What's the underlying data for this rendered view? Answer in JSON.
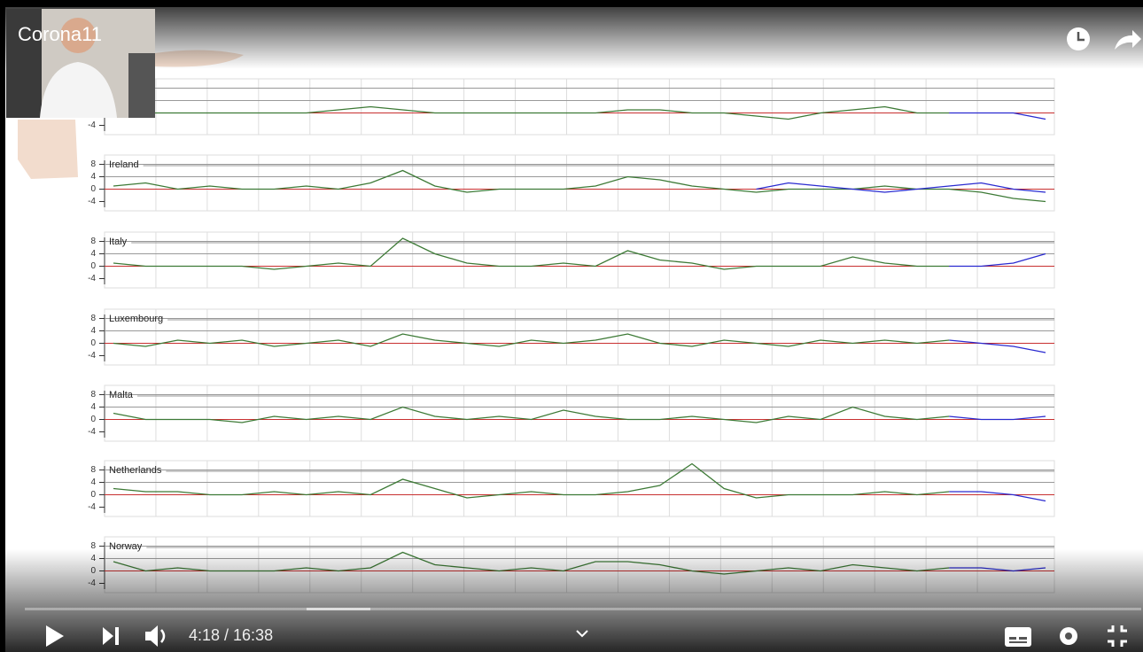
{
  "player": {
    "title": "Corona11",
    "time": "4:18 / 16:38"
  },
  "chart_data": [
    {
      "type": "line",
      "name": null,
      "ylim": [
        -7,
        11
      ],
      "yticks": [
        8,
        4,
        0,
        -4
      ],
      "series": [
        {
          "color": "#3d7a36",
          "values": [
            0,
            0,
            0,
            0,
            0,
            0,
            0,
            1,
            2,
            1,
            0,
            0,
            0,
            0,
            0,
            0,
            1,
            1,
            0,
            0,
            -1,
            -2,
            0,
            1,
            2,
            0,
            0,
            null,
            null,
            null
          ]
        },
        {
          "color": "#2a2ad0",
          "values": [
            null,
            null,
            null,
            null,
            null,
            null,
            null,
            null,
            null,
            null,
            null,
            null,
            null,
            null,
            null,
            null,
            null,
            null,
            null,
            null,
            null,
            null,
            null,
            null,
            null,
            null,
            0,
            0,
            0,
            -2
          ]
        }
      ]
    },
    {
      "type": "line",
      "name": "Ireland",
      "ylim": [
        -7,
        11
      ],
      "yticks": [
        8,
        4,
        0,
        -4
      ],
      "series": [
        {
          "color": "#3d7a36",
          "values": [
            1,
            2,
            0,
            1,
            0,
            0,
            1,
            0,
            2,
            6,
            1,
            -1,
            0,
            0,
            0,
            1,
            4,
            3,
            1,
            0,
            -1,
            0,
            0,
            0,
            1,
            0,
            0,
            -1,
            -3,
            -4
          ]
        },
        {
          "color": "#2a2ad0",
          "values": [
            null,
            null,
            null,
            null,
            null,
            null,
            null,
            null,
            null,
            null,
            null,
            null,
            null,
            null,
            null,
            null,
            null,
            null,
            null,
            null,
            0,
            2,
            1,
            0,
            -1,
            0,
            1,
            2,
            0,
            -1
          ]
        }
      ]
    },
    {
      "type": "line",
      "name": "Italy",
      "ylim": [
        -7,
        11
      ],
      "yticks": [
        8,
        4,
        0,
        -4
      ],
      "series": [
        {
          "color": "#3d7a36",
          "values": [
            1,
            0,
            0,
            0,
            0,
            -1,
            0,
            1,
            0,
            9,
            4,
            1,
            0,
            0,
            1,
            0,
            5,
            2,
            1,
            -1,
            0,
            0,
            0,
            3,
            1,
            0,
            0,
            null,
            null,
            null
          ]
        },
        {
          "color": "#2a2ad0",
          "values": [
            null,
            null,
            null,
            null,
            null,
            null,
            null,
            null,
            null,
            null,
            null,
            null,
            null,
            null,
            null,
            null,
            null,
            null,
            null,
            null,
            null,
            null,
            null,
            null,
            null,
            null,
            0,
            0,
            1,
            4
          ]
        }
      ]
    },
    {
      "type": "line",
      "name": "Luxembourg",
      "ylim": [
        -7,
        11
      ],
      "yticks": [
        8,
        4,
        0,
        -4
      ],
      "series": [
        {
          "color": "#3d7a36",
          "values": [
            0,
            -1,
            1,
            0,
            1,
            -1,
            0,
            1,
            -1,
            3,
            1,
            0,
            -1,
            1,
            0,
            1,
            3,
            0,
            -1,
            1,
            0,
            -1,
            1,
            0,
            1,
            0,
            1,
            null,
            null,
            null
          ]
        },
        {
          "color": "#2a2ad0",
          "values": [
            null,
            null,
            null,
            null,
            null,
            null,
            null,
            null,
            null,
            null,
            null,
            null,
            null,
            null,
            null,
            null,
            null,
            null,
            null,
            null,
            null,
            null,
            null,
            null,
            null,
            null,
            1,
            0,
            -1,
            -3
          ]
        }
      ]
    },
    {
      "type": "line",
      "name": "Malta",
      "ylim": [
        -7,
        11
      ],
      "yticks": [
        8,
        4,
        0,
        -4
      ],
      "series": [
        {
          "color": "#3d7a36",
          "values": [
            2,
            0,
            0,
            0,
            -1,
            1,
            0,
            1,
            0,
            4,
            1,
            0,
            1,
            0,
            3,
            1,
            0,
            0,
            1,
            0,
            -1,
            1,
            0,
            4,
            1,
            0,
            1,
            null,
            null,
            null
          ]
        },
        {
          "color": "#2a2ad0",
          "values": [
            null,
            null,
            null,
            null,
            null,
            null,
            null,
            null,
            null,
            null,
            null,
            null,
            null,
            null,
            null,
            null,
            null,
            null,
            null,
            null,
            null,
            null,
            null,
            null,
            null,
            null,
            1,
            0,
            0,
            1
          ]
        }
      ]
    },
    {
      "type": "line",
      "name": "Netherlands",
      "ylim": [
        -7,
        11
      ],
      "yticks": [
        8,
        4,
        0,
        -4
      ],
      "series": [
        {
          "color": "#3d7a36",
          "values": [
            2,
            1,
            1,
            0,
            0,
            1,
            0,
            1,
            0,
            5,
            2,
            -1,
            0,
            1,
            0,
            0,
            1,
            3,
            10,
            2,
            -1,
            0,
            0,
            0,
            1,
            0,
            1,
            null,
            null,
            null
          ]
        },
        {
          "color": "#2a2ad0",
          "values": [
            null,
            null,
            null,
            null,
            null,
            null,
            null,
            null,
            null,
            null,
            null,
            null,
            null,
            null,
            null,
            null,
            null,
            null,
            null,
            null,
            null,
            null,
            null,
            null,
            null,
            null,
            1,
            1,
            0,
            -2
          ]
        }
      ]
    },
    {
      "type": "line",
      "name": "Norway",
      "ylim": [
        -7,
        11
      ],
      "yticks": [
        8,
        4,
        0,
        -4
      ],
      "series": [
        {
          "color": "#3d7a36",
          "values": [
            3,
            0,
            1,
            0,
            0,
            0,
            1,
            0,
            1,
            6,
            2,
            1,
            0,
            1,
            0,
            3,
            3,
            2,
            0,
            -1,
            0,
            1,
            0,
            2,
            1,
            0,
            1,
            null,
            null,
            null
          ]
        },
        {
          "color": "#2a2ad0",
          "values": [
            null,
            null,
            null,
            null,
            null,
            null,
            null,
            null,
            null,
            null,
            null,
            null,
            null,
            null,
            null,
            null,
            null,
            null,
            null,
            null,
            null,
            null,
            null,
            null,
            null,
            null,
            1,
            1,
            0,
            1
          ]
        }
      ]
    }
  ]
}
